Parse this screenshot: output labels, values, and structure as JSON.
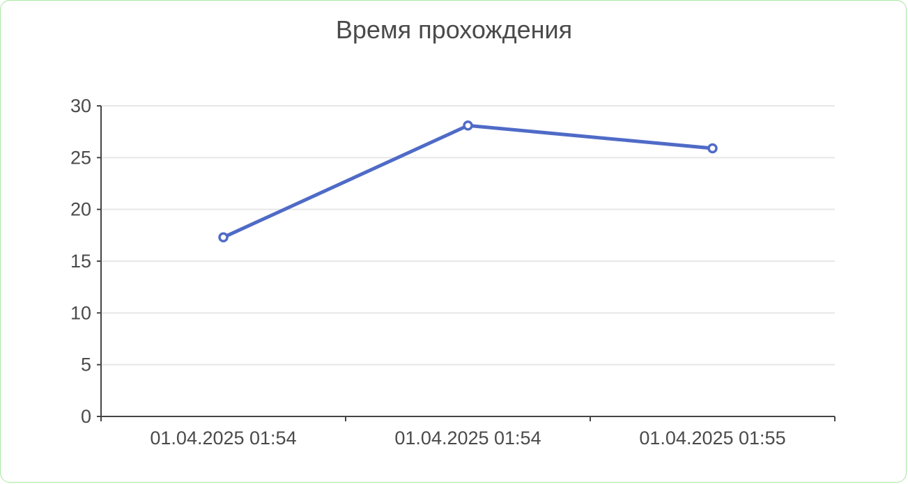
{
  "chart_data": {
    "type": "line",
    "title": "Время прохождения",
    "xlabel": "",
    "ylabel": "",
    "categories": [
      "01.04.2025 01:54",
      "01.04.2025 01:54",
      "01.04.2025 01:55"
    ],
    "series": [
      {
        "values": [
          17.3,
          28.1,
          25.9
        ]
      }
    ],
    "ylim": [
      0,
      30
    ],
    "yticks": [
      0,
      5,
      10,
      15,
      20,
      25,
      30
    ],
    "grid": true,
    "legend": "none",
    "colors": {
      "line": "#4f6bc7",
      "grid": "#e6e6e6",
      "axis": "#444444",
      "text": "#4a4a4a",
      "border": "#a8e6a0"
    }
  }
}
